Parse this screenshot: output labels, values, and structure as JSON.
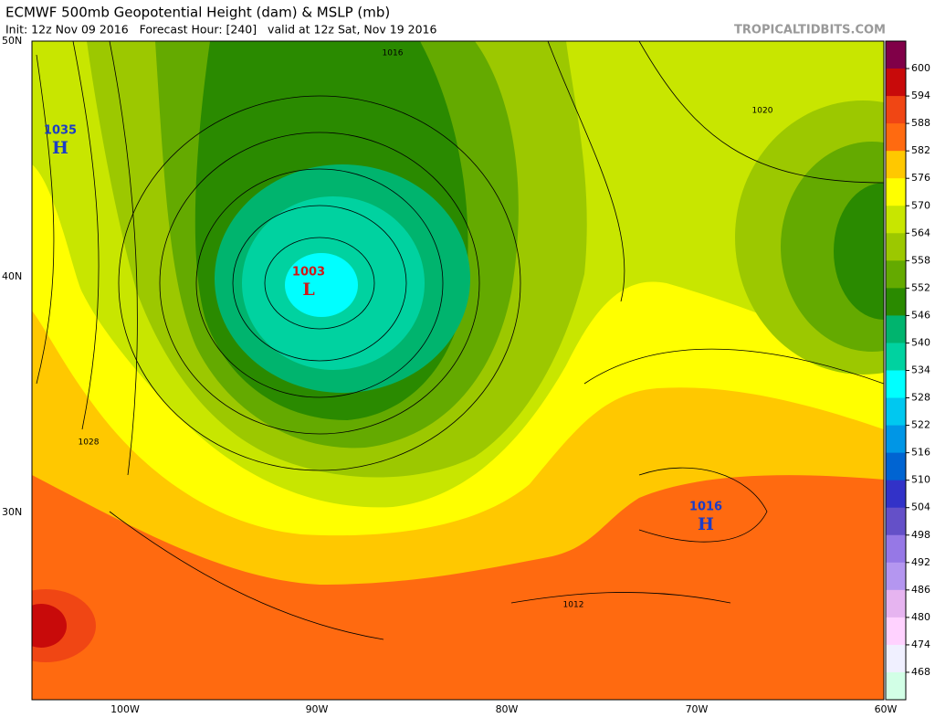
{
  "header": {
    "title": "ECMWF 500mb Geopotential Height (dam) & MSLP (mb)",
    "subtitle": "Init: 12z Nov 09 2016   Forecast Hour: [240]   valid at 12z Sat, Nov 19 2016",
    "source": "TROPICALTIDBITS.COM"
  },
  "map": {
    "lat_labels": [
      "50N",
      "40N",
      "30N"
    ],
    "lon_labels": [
      "100W",
      "90W",
      "80W",
      "70W",
      "60W"
    ],
    "pressure_centers": [
      {
        "value": 1035,
        "symbol": "H"
      },
      {
        "value": 1003,
        "symbol": "L"
      },
      {
        "value": 1016,
        "symbol": "H"
      }
    ],
    "contour_labels": [
      1016,
      1020,
      1028,
      1012
    ]
  },
  "colorbar": {
    "labels": [
      600,
      594,
      588,
      582,
      576,
      570,
      564,
      558,
      552,
      546,
      540,
      534,
      528,
      522,
      516,
      510,
      504,
      498,
      492,
      486,
      480,
      474,
      468
    ],
    "colors": [
      "#800048",
      "#c80a0a",
      "#f04614",
      "#ff6a10",
      "#ffc800",
      "#ffff00",
      "#c8e600",
      "#9cc800",
      "#64aa00",
      "#2a8a00",
      "#00b46e",
      "#00d2a0",
      "#00ffff",
      "#00c8f0",
      "#0096e6",
      "#0064d2",
      "#3232c8",
      "#6450c8",
      "#9678e6",
      "#b496f0",
      "#e6b4f0",
      "#ffd2ff",
      "#f0f0ff",
      "#d2ffe6"
    ]
  }
}
